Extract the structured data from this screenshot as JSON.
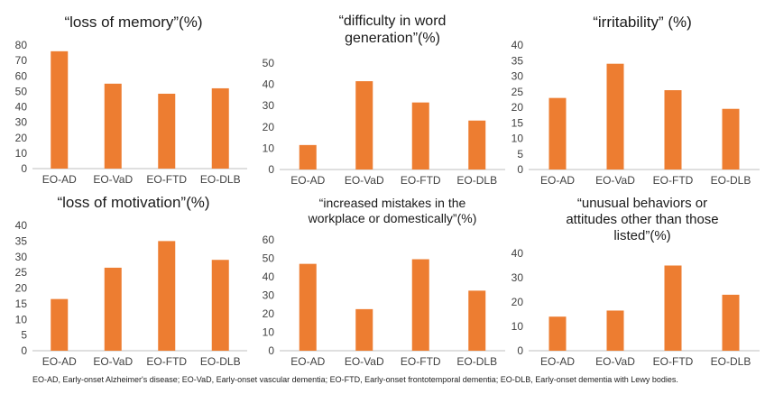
{
  "footnote": "EO-AD, Early-onset Alzheimer's disease; EO-VaD, Early-onset vascular dementia; EO-FTD, Early-onset frontotemporal dementia; EO-DLB, Early-onset dementia with Lewy bodies.",
  "colors": {
    "bar": "#ED7D31",
    "axis": "#bfbfbf",
    "text": "#404040",
    "title": "#1a1a1a"
  },
  "chart_data": [
    {
      "type": "bar",
      "title_lines": [
        "“loss of memory”(%)"
      ],
      "categories": [
        "EO-AD",
        "EO-VaD",
        "EO-FTD",
        "EO-DLB"
      ],
      "values": [
        76,
        55,
        48.5,
        52
      ],
      "ylim": [
        0,
        80
      ],
      "yticks": [
        0,
        10,
        20,
        30,
        40,
        50,
        60,
        70,
        80
      ],
      "grid": false
    },
    {
      "type": "bar",
      "title_lines": [
        "“difficulty in word",
        "generation”(%)"
      ],
      "categories": [
        "EO-AD",
        "EO-VaD",
        "EO-FTD",
        "EO-DLB"
      ],
      "values": [
        11.5,
        41.5,
        31.5,
        23
      ],
      "ylim": [
        0,
        50
      ],
      "yticks": [
        0,
        10,
        20,
        30,
        40,
        50
      ],
      "grid": false
    },
    {
      "type": "bar",
      "title_lines": [
        "“irritability” (%)"
      ],
      "categories": [
        "EO-AD",
        "EO-VaD",
        "EO-FTD",
        "EO-DLB"
      ],
      "values": [
        23,
        34,
        25.5,
        19.5
      ],
      "ylim": [
        0,
        40
      ],
      "yticks": [
        0,
        5,
        10,
        15,
        20,
        25,
        30,
        35,
        40
      ],
      "grid": false
    },
    {
      "type": "bar",
      "title_lines": [
        "“loss of motivation”(%)"
      ],
      "categories": [
        "EO-AD",
        "EO-VaD",
        "EO-FTD",
        "EO-DLB"
      ],
      "values": [
        16.5,
        26.5,
        35,
        29
      ],
      "ylim": [
        0,
        40
      ],
      "yticks": [
        0,
        5,
        10,
        15,
        20,
        25,
        30,
        35,
        40
      ],
      "grid": false
    },
    {
      "type": "bar",
      "title_lines": [
        "“increased mistakes in the",
        "workplace or domestically”(%)"
      ],
      "categories": [
        "EO-AD",
        "EO-VaD",
        "EO-FTD",
        "EO-DLB"
      ],
      "values": [
        47,
        22.5,
        49.5,
        32.5
      ],
      "ylim": [
        0,
        60
      ],
      "yticks": [
        0,
        10,
        20,
        30,
        40,
        50,
        60
      ],
      "grid": false
    },
    {
      "type": "bar",
      "title_lines": [
        "“unusual behaviors or",
        "attitudes other than those",
        "listed”(%)"
      ],
      "categories": [
        "EO-AD",
        "EO-VaD",
        "EO-FTD",
        "EO-DLB"
      ],
      "values": [
        14,
        16.5,
        35,
        23
      ],
      "ylim": [
        0,
        40
      ],
      "yticks": [
        0,
        10,
        20,
        30,
        40
      ],
      "grid": false
    }
  ]
}
